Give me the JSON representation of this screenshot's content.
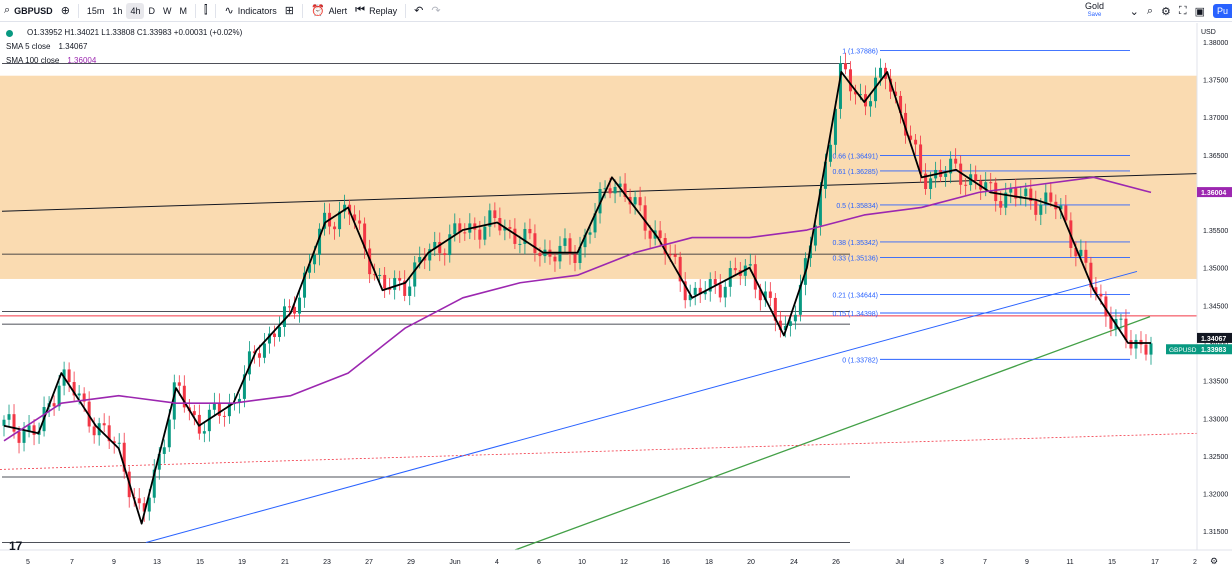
{
  "toolbar": {
    "symbol": "GBPUSD",
    "intervals": [
      "15m",
      "1h",
      "4h",
      "D",
      "W",
      "M"
    ],
    "active_interval": "4h",
    "indicators_label": "Indicators",
    "alert_label": "Alert",
    "replay_label": "Replay",
    "gold_label": "Gold",
    "save_label": "Save",
    "publish_label": "Pu"
  },
  "legend": {
    "ohlc": "O1.33952  H1.34021  L1.33808  C1.33983  +0.00031 (+0.02%)",
    "sma5_label": "SMA 5 close",
    "sma5_value": "1.34067",
    "sma100_label": "SMA 100 close",
    "sma100_value": "1.36004"
  },
  "colors": {
    "up": "#089981",
    "down": "#f23645",
    "sma5": "#000000",
    "sma100": "#9c27b0",
    "zone": "#fad7a8",
    "fib": "#2962ff",
    "green_trend": "#43a047",
    "red_level": "#f23645"
  },
  "chart_data": {
    "type": "line",
    "symbol": "GBPUSD",
    "currency": "USD",
    "ylim": [
      1.3125,
      1.3825
    ],
    "y_ticks": [
      "1.38000",
      "1.37500",
      "1.37000",
      "1.36500",
      "1.36000",
      "1.35500",
      "1.35000",
      "1.34500",
      "1.34000",
      "1.33500",
      "1.33000",
      "1.32500",
      "1.32000",
      "1.31500"
    ],
    "x_ticks": [
      "5",
      "7",
      "9",
      "13",
      "15",
      "19",
      "21",
      "23",
      "27",
      "29",
      "Jun",
      "4",
      "6",
      "10",
      "12",
      "16",
      "18",
      "20",
      "24",
      "26",
      "Jul",
      "3",
      "7",
      "9",
      "11",
      "15",
      "17",
      "2"
    ],
    "series": [
      {
        "name": "SMA 5 close",
        "x": [
          0,
          0.03,
          0.05,
          0.08,
          0.1,
          0.12,
          0.15,
          0.17,
          0.2,
          0.22,
          0.25,
          0.28,
          0.3,
          0.33,
          0.35,
          0.37,
          0.4,
          0.43,
          0.47,
          0.5,
          0.53,
          0.57,
          0.6,
          0.65,
          0.68,
          0.7,
          0.73,
          0.75,
          0.77,
          0.8,
          0.83,
          0.86,
          0.9,
          0.92,
          0.95,
          0.98,
          1.0
        ],
        "values": [
          1.329,
          1.328,
          1.336,
          1.329,
          1.326,
          1.316,
          1.334,
          1.329,
          1.332,
          1.339,
          1.344,
          1.356,
          1.358,
          1.347,
          1.348,
          1.352,
          1.355,
          1.356,
          1.352,
          1.352,
          1.362,
          1.354,
          1.346,
          1.35,
          1.341,
          1.35,
          1.376,
          1.372,
          1.376,
          1.362,
          1.363,
          1.36,
          1.359,
          1.358,
          1.347,
          1.34,
          1.34
        ]
      },
      {
        "name": "SMA 100 close",
        "x": [
          0,
          0.05,
          0.1,
          0.15,
          0.2,
          0.25,
          0.3,
          0.35,
          0.4,
          0.45,
          0.5,
          0.55,
          0.6,
          0.65,
          0.7,
          0.75,
          0.8,
          0.85,
          0.9,
          0.95,
          1.0
        ],
        "values": [
          1.327,
          1.332,
          1.333,
          1.332,
          1.332,
          1.333,
          1.336,
          1.342,
          1.346,
          1.348,
          1.349,
          1.352,
          1.354,
          1.354,
          1.355,
          1.357,
          1.358,
          1.36,
          1.361,
          1.362,
          1.36
        ]
      }
    ],
    "price_labels": [
      {
        "label": "",
        "value": "1.36004"
      },
      {
        "label": "",
        "value": "1.34067"
      },
      {
        "label": "GBPUSD",
        "value": "1.33983"
      }
    ],
    "fib_levels": [
      {
        "ratio": "1",
        "price": "1.37886"
      },
      {
        "ratio": "0.66",
        "price": "1.36491"
      },
      {
        "ratio": "0.61",
        "price": "1.36285"
      },
      {
        "ratio": "0.5",
        "price": "1.35834"
      },
      {
        "ratio": "0.38",
        "price": "1.35342"
      },
      {
        "ratio": "0.33",
        "price": "1.35136"
      },
      {
        "ratio": "0.21",
        "price": "1.34644"
      },
      {
        "ratio": "0.15",
        "price": "1.34398"
      },
      {
        "ratio": "0",
        "price": "1.33782"
      }
    ],
    "zone": {
      "from": 1.3485,
      "to": 1.3755
    },
    "horizontal_levels": [
      1.3518,
      1.3442,
      1.3425,
      1.3222,
      1.3135,
      1.3771
    ]
  }
}
